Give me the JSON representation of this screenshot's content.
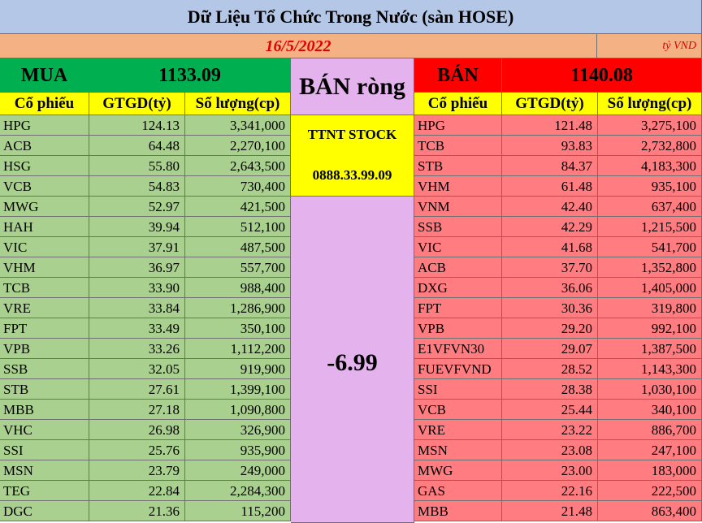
{
  "header": {
    "title": "Dữ Liệu Tổ Chức Trong Nước (sàn HOSE)",
    "date": "16/5/2022",
    "unit": "tỷ VND"
  },
  "buy": {
    "label": "MUA",
    "total": "1133.09",
    "columns": [
      "Cổ phiếu",
      "GTGD(tỷ)",
      "Số lượng(cp)"
    ],
    "rows": [
      [
        "HPG",
        "124.13",
        "3,341,000"
      ],
      [
        "ACB",
        "64.48",
        "2,270,100"
      ],
      [
        "HSG",
        "55.80",
        "2,643,500"
      ],
      [
        "VCB",
        "54.83",
        "730,400"
      ],
      [
        "MWG",
        "52.97",
        "421,500"
      ],
      [
        "HAH",
        "39.94",
        "512,100"
      ],
      [
        "VIC",
        "37.91",
        "487,500"
      ],
      [
        "VHM",
        "36.97",
        "557,700"
      ],
      [
        "TCB",
        "33.90",
        "988,400"
      ],
      [
        "VRE",
        "33.84",
        "1,286,900"
      ],
      [
        "FPT",
        "33.49",
        "350,100"
      ],
      [
        "VPB",
        "33.26",
        "1,112,200"
      ],
      [
        "SSB",
        "32.05",
        "919,900"
      ],
      [
        "STB",
        "27.61",
        "1,399,100"
      ],
      [
        "MBB",
        "27.18",
        "1,090,800"
      ],
      [
        "VHC",
        "26.98",
        "326,900"
      ],
      [
        "SSI",
        "25.76",
        "935,900"
      ],
      [
        "MSN",
        "23.79",
        "249,000"
      ],
      [
        "TEG",
        "22.84",
        "2,284,300"
      ],
      [
        "DGC",
        "21.36",
        "115,200"
      ]
    ]
  },
  "net": {
    "label": "BÁN ròng",
    "promo_name": "TTNT STOCK",
    "promo_phone": "0888.33.99.09",
    "value": "-6.99"
  },
  "sell": {
    "label": "BÁN",
    "total": "1140.08",
    "columns": [
      "Cổ phiếu",
      "GTGD(tỷ)",
      "Số lượng(cp)"
    ],
    "rows": [
      [
        "HPG",
        "121.48",
        "3,275,100"
      ],
      [
        "TCB",
        "93.83",
        "2,732,800"
      ],
      [
        "STB",
        "84.37",
        "4,183,300"
      ],
      [
        "VHM",
        "61.48",
        "935,100"
      ],
      [
        "VNM",
        "42.40",
        "637,400"
      ],
      [
        "SSB",
        "42.29",
        "1,215,500"
      ],
      [
        "VIC",
        "41.68",
        "541,700"
      ],
      [
        "ACB",
        "37.70",
        "1,352,800"
      ],
      [
        "DXG",
        "36.06",
        "1,405,000"
      ],
      [
        "FPT",
        "30.36",
        "319,800"
      ],
      [
        "VPB",
        "29.20",
        "992,100"
      ],
      [
        "E1VFVN30",
        "29.07",
        "1,387,500"
      ],
      [
        "FUEVFVND",
        "28.52",
        "1,143,300"
      ],
      [
        "SSI",
        "28.38",
        "1,030,100"
      ],
      [
        "VCB",
        "25.44",
        "340,100"
      ],
      [
        "VRE",
        "23.22",
        "886,700"
      ],
      [
        "MSN",
        "23.08",
        "247,100"
      ],
      [
        "MWG",
        "23.00",
        "183,000"
      ],
      [
        "GAS",
        "22.16",
        "222,500"
      ],
      [
        "MBB",
        "21.48",
        "863,400"
      ]
    ]
  }
}
